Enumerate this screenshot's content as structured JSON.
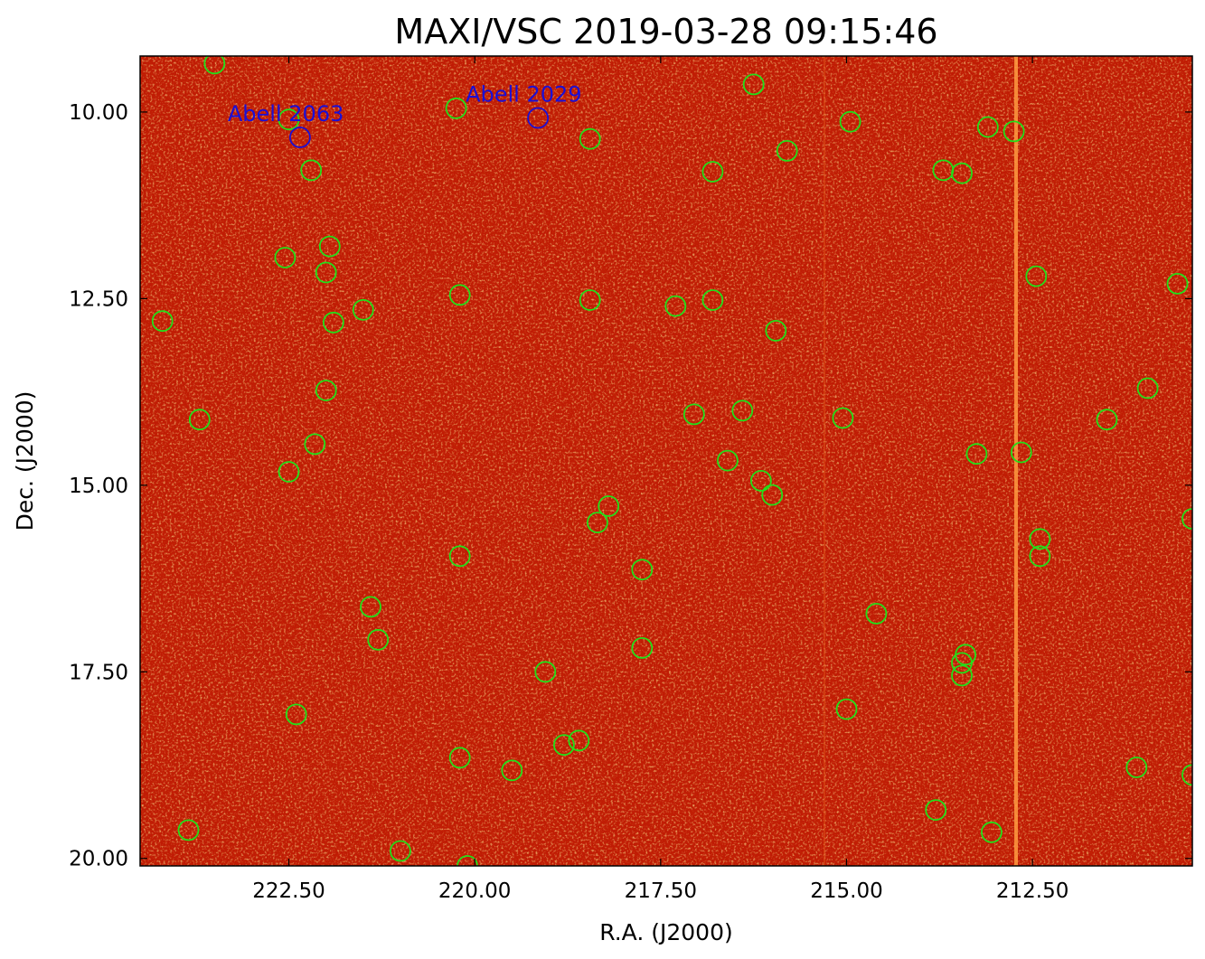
{
  "chart_data": {
    "type": "scatter",
    "title": "MAXI/VSC 2019-03-28 09:15:46",
    "xlabel": "R.A. (J2000)",
    "ylabel": "Dec. (J2000)",
    "xlim": [
      224.5,
      210.35
    ],
    "ylim": [
      20.1,
      9.25
    ],
    "x_ticks": [
      {
        "value": 222.5,
        "label": "222.50"
      },
      {
        "value": 220.0,
        "label": "220.00"
      },
      {
        "value": 217.5,
        "label": "217.50"
      },
      {
        "value": 215.0,
        "label": "215.00"
      },
      {
        "value": 212.5,
        "label": "212.50"
      }
    ],
    "y_ticks": [
      {
        "value": 10.0,
        "label": "10.00"
      },
      {
        "value": 12.5,
        "label": "12.50"
      },
      {
        "value": 15.0,
        "label": "15.00"
      },
      {
        "value": 17.5,
        "label": "17.50"
      },
      {
        "value": 20.0,
        "label": "20.00"
      }
    ],
    "background": "X-ray counts image (red colormap)",
    "colors": {
      "image_base": "#c01a05",
      "green_marker": "#22e01a",
      "cluster_marker": "#1a0fd6",
      "streak": "#ff9a40"
    },
    "clusters": [
      {
        "name": "Abell 2063",
        "ra": 222.35,
        "dec": 10.34
      },
      {
        "name": "Abell 2029",
        "ra": 219.15,
        "dec": 10.08
      }
    ],
    "sources": [
      [
        223.5,
        9.35
      ],
      [
        222.5,
        10.1
      ],
      [
        220.25,
        9.95
      ],
      [
        216.25,
        9.63
      ],
      [
        214.95,
        10.13
      ],
      [
        213.1,
        10.2
      ],
      [
        212.75,
        10.26
      ],
      [
        218.45,
        10.36
      ],
      [
        215.8,
        10.52
      ],
      [
        222.2,
        10.78
      ],
      [
        216.8,
        10.8
      ],
      [
        213.7,
        10.78
      ],
      [
        213.45,
        10.82
      ],
      [
        222.55,
        11.95
      ],
      [
        221.95,
        11.8
      ],
      [
        222.0,
        12.15
      ],
      [
        212.45,
        12.2
      ],
      [
        210.55,
        12.3
      ],
      [
        220.2,
        12.45
      ],
      [
        218.45,
        12.52
      ],
      [
        216.8,
        12.52
      ],
      [
        217.3,
        12.6
      ],
      [
        221.5,
        12.65
      ],
      [
        224.2,
        12.8
      ],
      [
        221.9,
        12.82
      ],
      [
        215.95,
        12.93
      ],
      [
        210.95,
        13.7
      ],
      [
        222.0,
        13.73
      ],
      [
        216.4,
        14.0
      ],
      [
        217.05,
        14.05
      ],
      [
        215.05,
        14.1
      ],
      [
        223.7,
        14.12
      ],
      [
        211.5,
        14.12
      ],
      [
        222.15,
        14.45
      ],
      [
        213.25,
        14.58
      ],
      [
        212.65,
        14.56
      ],
      [
        216.6,
        14.67
      ],
      [
        222.5,
        14.82
      ],
      [
        216.15,
        14.94
      ],
      [
        216.0,
        15.13
      ],
      [
        218.2,
        15.28
      ],
      [
        218.35,
        15.5
      ],
      [
        210.35,
        15.45
      ],
      [
        212.4,
        15.72
      ],
      [
        212.4,
        15.95
      ],
      [
        220.2,
        15.95
      ],
      [
        217.75,
        16.13
      ],
      [
        221.4,
        16.63
      ],
      [
        214.6,
        16.72
      ],
      [
        221.3,
        17.07
      ],
      [
        217.75,
        17.18
      ],
      [
        213.4,
        17.27
      ],
      [
        213.45,
        17.38
      ],
      [
        213.45,
        17.55
      ],
      [
        219.05,
        17.5
      ],
      [
        215.0,
        18.0
      ],
      [
        222.4,
        18.07
      ],
      [
        218.6,
        18.42
      ],
      [
        218.8,
        18.48
      ],
      [
        220.2,
        18.65
      ],
      [
        219.5,
        18.82
      ],
      [
        211.1,
        18.78
      ],
      [
        210.35,
        18.88
      ],
      [
        213.8,
        19.35
      ],
      [
        223.85,
        19.62
      ],
      [
        213.05,
        19.65
      ],
      [
        221.0,
        19.9
      ],
      [
        220.1,
        20.1
      ]
    ]
  }
}
